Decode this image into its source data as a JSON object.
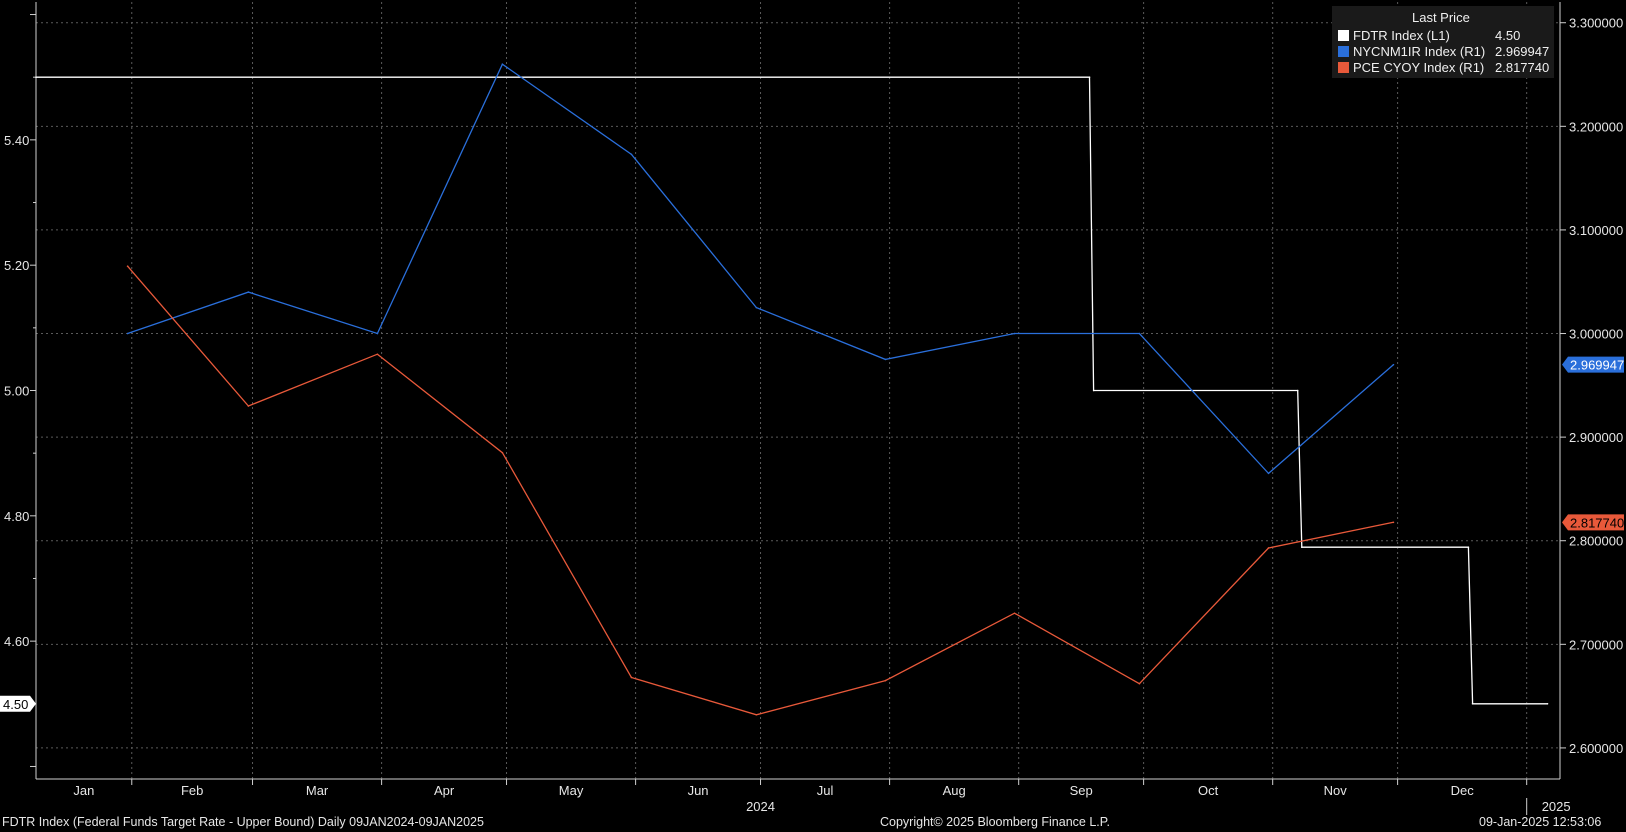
{
  "chart_data": {
    "type": "line",
    "left_axis": {
      "min": 4.38,
      "max": 5.62,
      "ticks": [
        "4.60",
        "4.80",
        "5.00",
        "5.20",
        "5.40"
      ]
    },
    "right_axis": {
      "min": 2.57,
      "max": 3.32,
      "ticks": [
        "2.600000",
        "2.700000",
        "2.800000",
        "2.900000",
        "3.000000",
        "3.100000",
        "3.200000",
        "3.300000"
      ]
    },
    "months": [
      "Jan",
      "Feb",
      "Mar",
      "Apr",
      "May",
      "Jun",
      "Jul",
      "Aug",
      "Sep",
      "Oct",
      "Nov",
      "Dec"
    ],
    "year_labels": [
      "2024",
      "2025"
    ],
    "x_range": [
      "2024-01-09",
      "2025-01-09"
    ],
    "grid": true,
    "legend_position": "top-right",
    "legend_header": "Last Price",
    "series": [
      {
        "name": "FDTR Index  (L1)",
        "last": "4.50",
        "axis": "left",
        "color": "#ffffff",
        "step": true,
        "points": [
          [
            "2024-01-09",
            5.5
          ],
          [
            "2024-09-18",
            5.5
          ],
          [
            "2024-09-19",
            5.0
          ],
          [
            "2024-11-07",
            5.0
          ],
          [
            "2024-11-08",
            4.75
          ],
          [
            "2024-12-18",
            4.75
          ],
          [
            "2024-12-19",
            4.5
          ],
          [
            "2025-01-06",
            4.5
          ]
        ]
      },
      {
        "name": "NYCNM1IR Index  (R1)",
        "last": "2.969947",
        "axis": "right",
        "color": "#2a6fdb",
        "points": [
          [
            "2024-01-31",
            3.0
          ],
          [
            "2024-02-29",
            3.04
          ],
          [
            "2024-03-31",
            3.0
          ],
          [
            "2024-04-30",
            3.26
          ],
          [
            "2024-05-31",
            3.173
          ],
          [
            "2024-06-30",
            3.025
          ],
          [
            "2024-07-31",
            2.975
          ],
          [
            "2024-08-31",
            3.0
          ],
          [
            "2024-09-30",
            3.0
          ],
          [
            "2024-10-31",
            2.865
          ],
          [
            "2024-11-30",
            2.969947
          ]
        ]
      },
      {
        "name": "PCE CYOY Index  (R1)",
        "last": "2.817740",
        "axis": "right",
        "color": "#e8593a",
        "points": [
          [
            "2024-01-31",
            3.065
          ],
          [
            "2024-02-29",
            2.93
          ],
          [
            "2024-03-31",
            2.98
          ],
          [
            "2024-04-30",
            2.885
          ],
          [
            "2024-05-31",
            2.668
          ],
          [
            "2024-06-30",
            2.632
          ],
          [
            "2024-07-31",
            2.665
          ],
          [
            "2024-08-31",
            2.73
          ],
          [
            "2024-09-30",
            2.662
          ],
          [
            "2024-10-31",
            2.793
          ],
          [
            "2024-11-30",
            2.81774
          ]
        ]
      }
    ]
  },
  "footer": {
    "left": "FDTR Index (Federal Funds Target Rate - Upper Bound)  Daily 09JAN2024-09JAN2025",
    "center": "Copyright© 2025 Bloomberg Finance L.P.",
    "right": "09-Jan-2025 12:53:06"
  }
}
